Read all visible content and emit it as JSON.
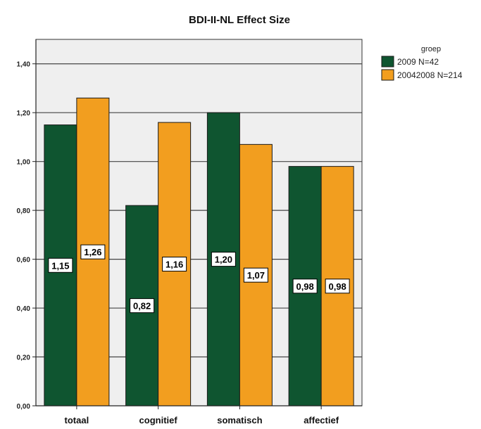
{
  "chart_data": {
    "type": "bar",
    "title": "BDI-II-NL  Effect Size",
    "xlabel": "",
    "ylabel": "",
    "categories": [
      "totaal",
      "cognitief",
      "somatisch",
      "affectief"
    ],
    "series": [
      {
        "name": "2009 N=42",
        "color": "#0f5530",
        "values": [
          1.15,
          0.82,
          1.2,
          0.98
        ],
        "labels": [
          "1,15",
          "0,82",
          "1,20",
          "0,98"
        ]
      },
      {
        "name": "20042008 N=214",
        "color": "#f29e1f",
        "values": [
          1.26,
          1.16,
          1.07,
          0.98
        ],
        "labels": [
          "1,26",
          "1,16",
          "1,07",
          "0,98"
        ]
      }
    ],
    "ylim": [
      0,
      1.5
    ],
    "yticks": [
      0,
      0.2,
      0.4,
      0.6,
      0.8,
      1.0,
      1.2,
      1.4
    ],
    "ytick_labels": [
      "0,00",
      "0,20",
      "0,40",
      "0,60",
      "0,80",
      "1,00",
      "1,20",
      "1,40"
    ],
    "grid": true,
    "legend": {
      "title": "groep",
      "position": "top-right"
    },
    "plot_background": "#efefef"
  }
}
